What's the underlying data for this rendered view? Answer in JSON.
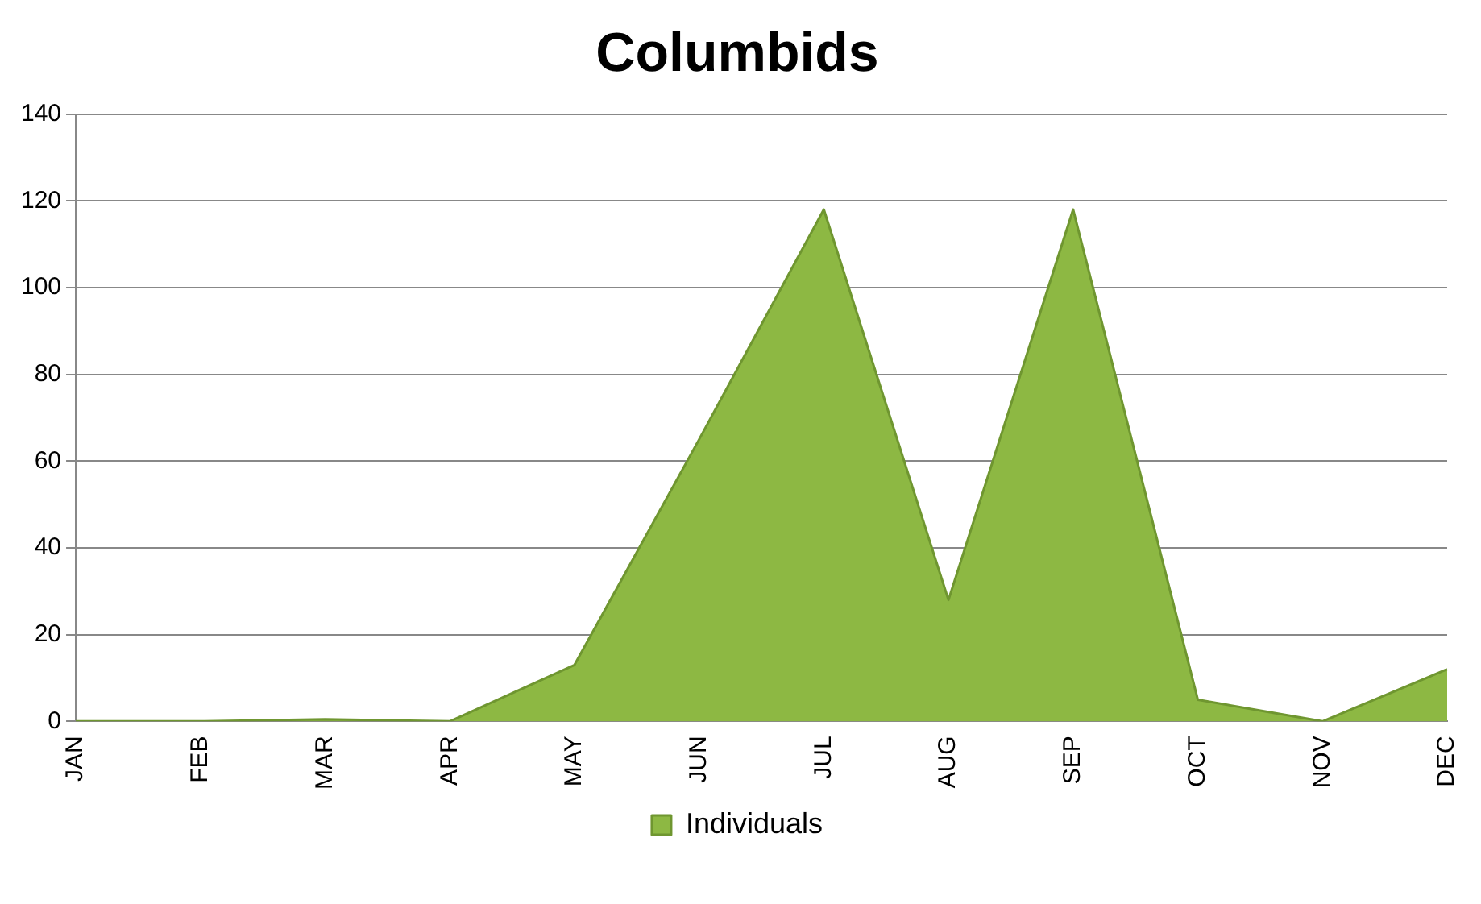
{
  "chart_data": {
    "type": "area",
    "title": "Columbids",
    "categories": [
      "JAN",
      "FEB",
      "MAR",
      "APR",
      "MAY",
      "JUN",
      "JUL",
      "AUG",
      "SEP",
      "OCT",
      "NOV",
      "DEC"
    ],
    "series": [
      {
        "name": "Individuals",
        "color": "#8db843",
        "values": [
          0,
          0,
          0.5,
          0,
          13,
          65,
          118,
          28,
          118,
          5,
          0,
          12
        ]
      }
    ],
    "ylim": [
      0,
      140
    ],
    "yticks": [
      0,
      20,
      40,
      60,
      80,
      100,
      120,
      140
    ],
    "grid": "y",
    "legend": "bottom"
  }
}
